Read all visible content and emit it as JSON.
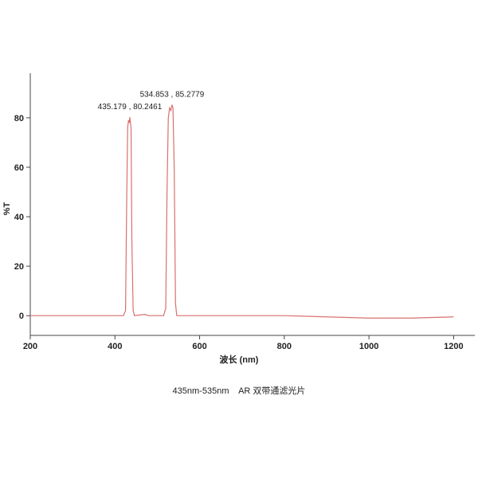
{
  "chart_data": {
    "type": "line",
    "x_label": "波长 (nm)",
    "y_label": "%T",
    "caption": "435nm-535nm    AR 双带通滤光片",
    "xlim": [
      200,
      1250
    ],
    "ylim": [
      -8,
      98
    ],
    "xticks": [
      200,
      400,
      600,
      800,
      1000,
      1200
    ],
    "yticks": [
      0,
      20,
      40,
      60,
      80
    ],
    "series": [
      {
        "name": "%T",
        "color": "#d9706e",
        "x": [
          200,
          420,
          425,
          428,
          430,
          432,
          434,
          435.179,
          438,
          440,
          443,
          446,
          470,
          480,
          500,
          515,
          520,
          523,
          526,
          529,
          532,
          534.853,
          537,
          540,
          543,
          546,
          600,
          800,
          900,
          1000,
          1100,
          1200
        ],
        "values": [
          0,
          0,
          2,
          50,
          76,
          79,
          78,
          80.2461,
          76,
          30,
          2,
          0,
          0.5,
          0,
          0,
          0,
          3,
          50,
          80,
          84,
          83,
          85.2779,
          84,
          60,
          5,
          0,
          0,
          0,
          -0.5,
          -1,
          -1,
          -0.5
        ]
      }
    ],
    "annotations": [
      {
        "text": "435.179 , 80.2461",
        "x": 435.179,
        "y": 80.2461
      },
      {
        "text": "534.853 , 85.2779",
        "x": 534.853,
        "y": 85.2779
      }
    ]
  }
}
